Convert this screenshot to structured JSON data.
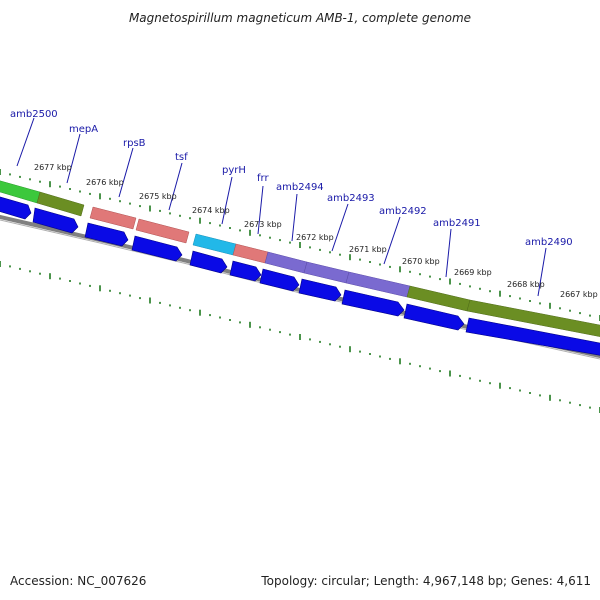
{
  "title": "Magnetospirillum magneticum AMB-1, complete genome",
  "footer": {
    "accession": "Accession: NC_007626",
    "summary": "Topology: circular; Length: 4,967,148 bp; Genes: 4,611"
  },
  "colors": {
    "cds_arrow": "#0a0ae6",
    "gene_label": "#1a1aa8",
    "ticks": "#1e7a1e",
    "backbone": "#808080",
    "feature_green_light": "#3cc83c",
    "feature_olive": "#6b8e23",
    "feature_salmon": "#e07878",
    "feature_cyan": "#22b8e8",
    "feature_purple": "#7a6ad0"
  },
  "kbp_ticks": [
    "2677 kbp",
    "2676 kbp",
    "2675 kbp",
    "2674 kbp",
    "2673 kbp",
    "2672 kbp",
    "2671 kbp",
    "2670 kbp",
    "2669 kbp",
    "2668 kbp",
    "2667 kbp"
  ],
  "gene_labels": [
    "amb2500",
    "mepA",
    "rpsB",
    "tsf",
    "pyrH",
    "frr",
    "amb2494",
    "amb2493",
    "amb2492",
    "amb2491",
    "amb2490"
  ],
  "feature_colors": [
    "light-green",
    "olive",
    "salmon",
    "salmon",
    "cyan",
    "salmon",
    "purple",
    "purple",
    "purple",
    "olive",
    "olive"
  ]
}
